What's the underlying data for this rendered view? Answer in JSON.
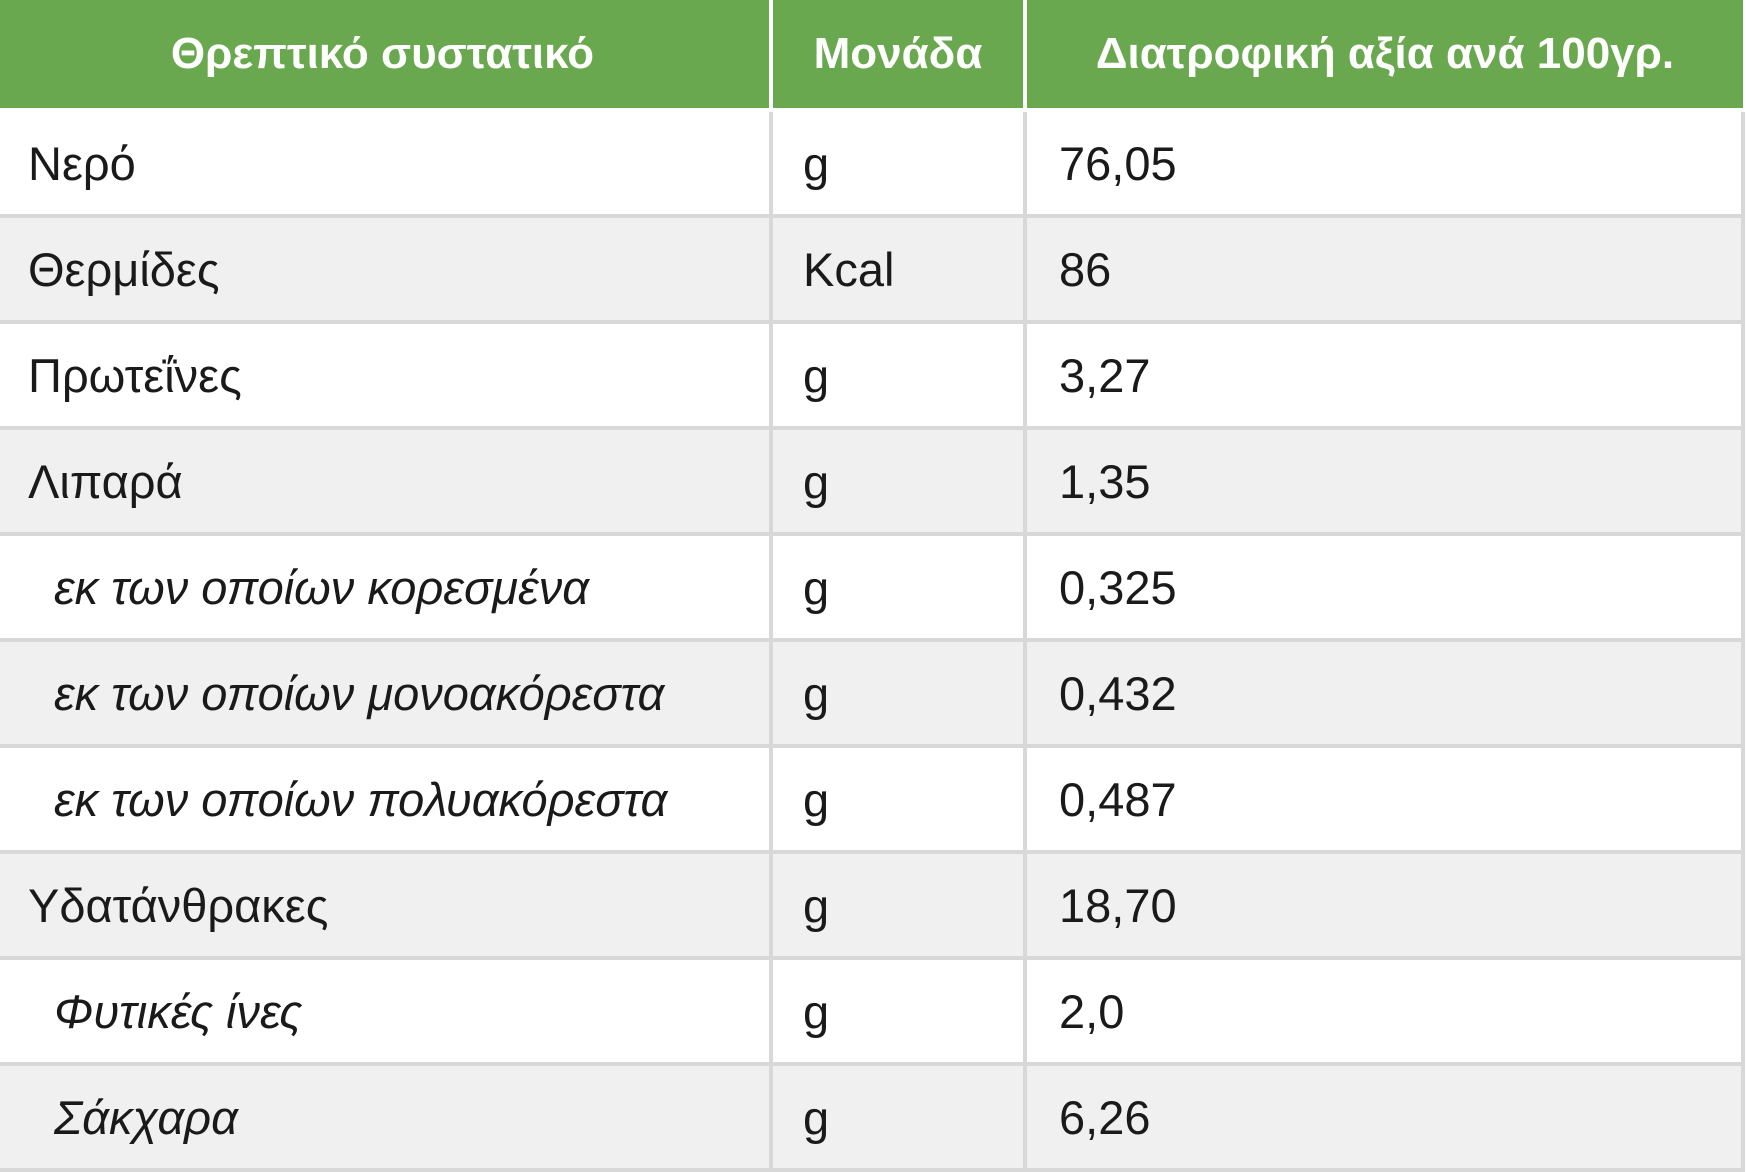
{
  "colors": {
    "header_bg": "#6aa84f",
    "header_text": "#ffffff",
    "row_alt_bg": "#f0f0f0",
    "border": "#d8d8d8"
  },
  "table": {
    "headers": {
      "nutrient": "Θρεπτικό συστατικό",
      "unit": "Μονάδα",
      "value": "Διατροφική αξία ανά 100γρ."
    },
    "rows": [
      {
        "nutrient": "Νερό",
        "unit": "g",
        "value": "76,05",
        "sub": false
      },
      {
        "nutrient": "Θερμίδες",
        "unit": "Kcal",
        "value": "86",
        "sub": false
      },
      {
        "nutrient": "Πρωτεΐνες",
        "unit": "g",
        "value": "3,27",
        "sub": false
      },
      {
        "nutrient": "Λιπαρά",
        "unit": "g",
        "value": "1,35",
        "sub": false
      },
      {
        "nutrient": "εκ των οποίων κορεσμένα",
        "unit": "g",
        "value": "0,325",
        "sub": true
      },
      {
        "nutrient": "εκ των οποίων μονοακόρεστα",
        "unit": "g",
        "value": "0,432",
        "sub": true
      },
      {
        "nutrient": "εκ των οποίων πολυακόρεστα",
        "unit": "g",
        "value": "0,487",
        "sub": true
      },
      {
        "nutrient": "Υδατάνθρακες",
        "unit": "g",
        "value": "18,70",
        "sub": false
      },
      {
        "nutrient": "Φυτικές ίνες",
        "unit": "g",
        "value": "2,0",
        "sub": true
      },
      {
        "nutrient": "Σάκχαρα",
        "unit": "g",
        "value": "6,26",
        "sub": true
      }
    ]
  }
}
